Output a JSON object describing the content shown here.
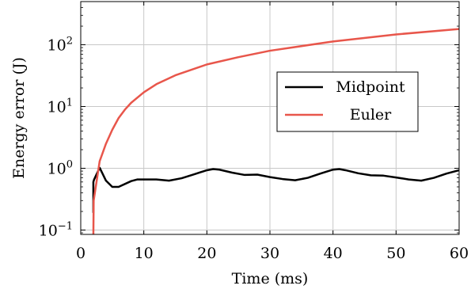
{
  "chart_data": {
    "type": "line",
    "xlabel": "Time (ms)",
    "ylabel": "Energy error (J)",
    "xlim": [
      0,
      60
    ],
    "ylim": [
      0.085,
      500
    ],
    "yscale": "log",
    "grid": true,
    "legend_position": "center-right",
    "x_ticks": [
      "0",
      "10",
      "20",
      "30",
      "40",
      "50",
      "60"
    ],
    "y_ticks": [
      {
        "base": "10",
        "exp": "−1"
      },
      {
        "base": "10",
        "exp": "0"
      },
      {
        "base": "10",
        "exp": "1"
      },
      {
        "base": "10",
        "exp": "2"
      }
    ],
    "series": [
      {
        "name": "Midpoint",
        "color": "#000000",
        "x": [
          2.0,
          2.0,
          2.1,
          3.0,
          4.0,
          5.0,
          6.0,
          8.0,
          9.0,
          10.0,
          12.0,
          14.0,
          16.0,
          18.0,
          20.0,
          21.0,
          22.0,
          24.0,
          26.0,
          28.0,
          30.0,
          32.0,
          34.0,
          36.0,
          38.0,
          40.0,
          41.0,
          42.0,
          44.0,
          46.0,
          48.0,
          50.0,
          52.0,
          54.0,
          56.0,
          58.0,
          60.0
        ],
        "y": [
          0.19,
          0.6,
          0.65,
          1.02,
          0.63,
          0.5,
          0.5,
          0.62,
          0.66,
          0.66,
          0.66,
          0.63,
          0.69,
          0.8,
          0.93,
          0.97,
          0.95,
          0.85,
          0.78,
          0.79,
          0.72,
          0.67,
          0.64,
          0.7,
          0.82,
          0.95,
          0.97,
          0.93,
          0.83,
          0.77,
          0.76,
          0.71,
          0.66,
          0.63,
          0.7,
          0.82,
          0.93
        ]
      },
      {
        "name": "Euler",
        "color": "#E8564B",
        "x": [
          2.0,
          2.05,
          3.0,
          4.0,
          5.0,
          6.0,
          7.0,
          8.0,
          10.0,
          12.0,
          15.0,
          20.0,
          25.0,
          30.0,
          40.0,
          50.0,
          60.0
        ],
        "y": [
          0.08,
          0.3,
          1.3,
          2.5,
          4.2,
          6.5,
          8.9,
          11.5,
          17.0,
          23.0,
          32.0,
          48.0,
          63.0,
          80.0,
          113.0,
          147.0,
          180.0
        ]
      }
    ]
  }
}
